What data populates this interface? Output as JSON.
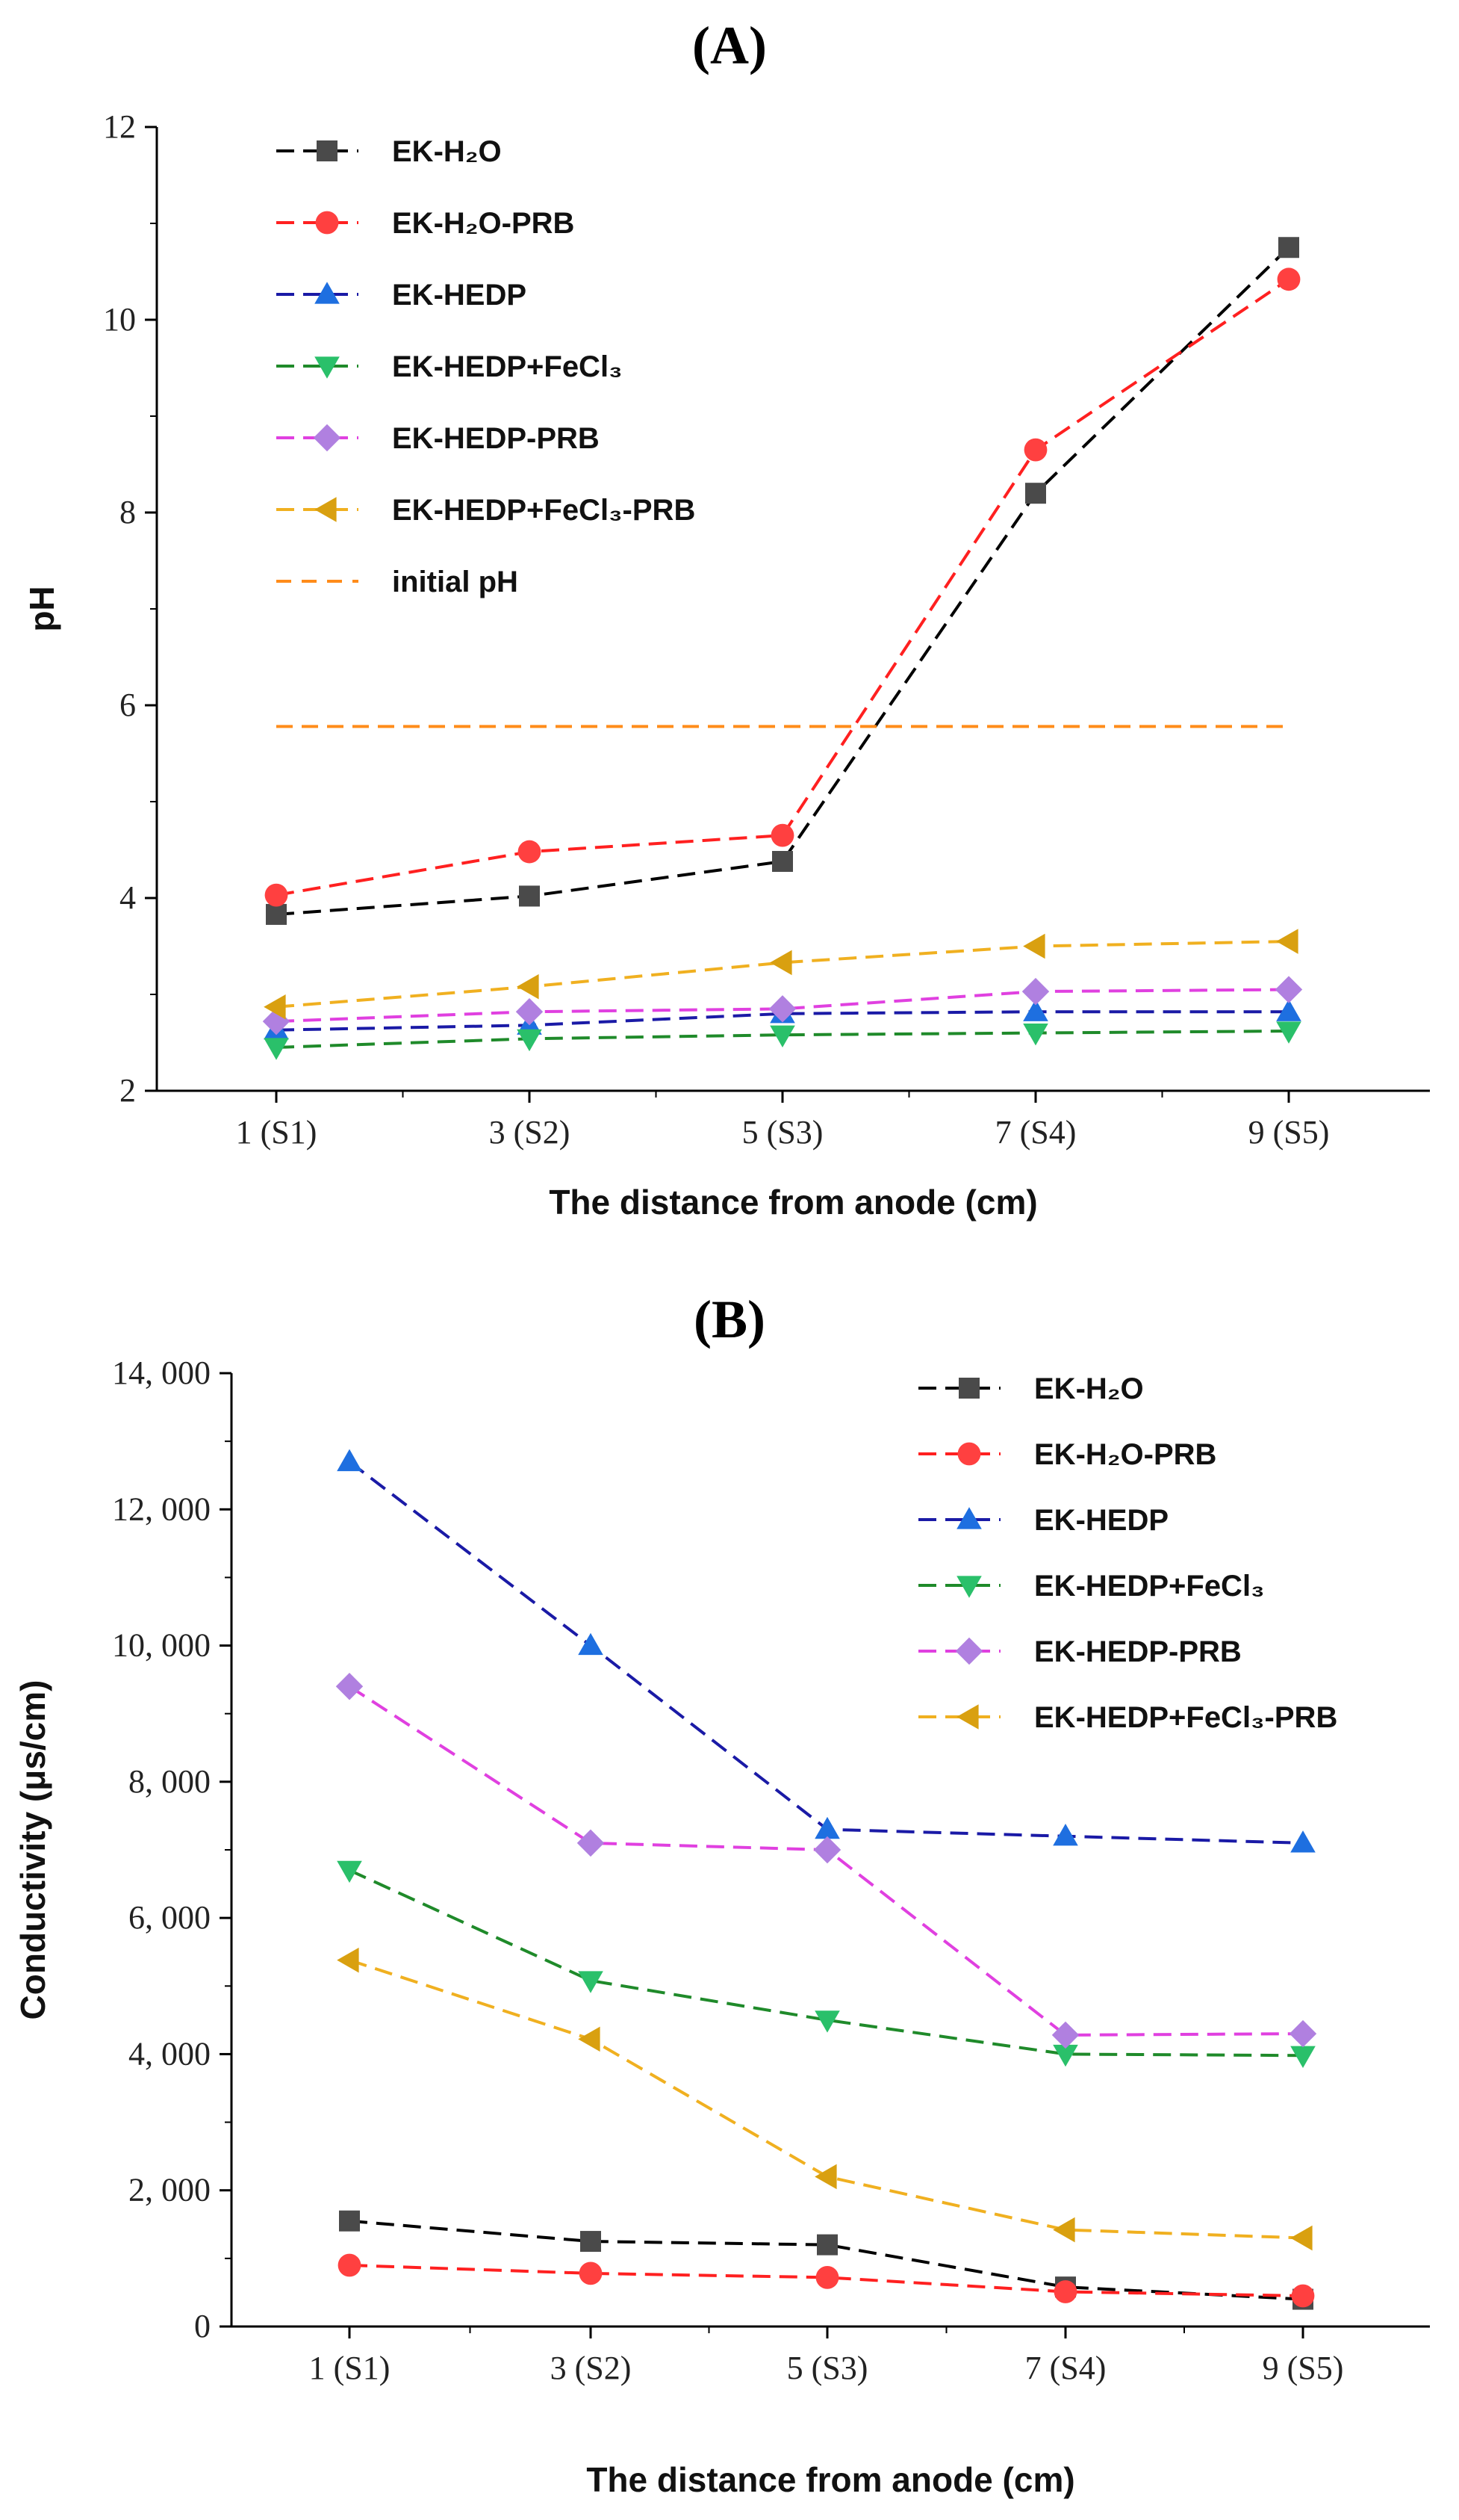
{
  "panels": {
    "a_label": "(A)",
    "b_label": "(B)"
  },
  "chart_data": [
    {
      "type": "line",
      "title": "(A)",
      "xlabel": "The distance from anode (cm)",
      "ylabel": "pH",
      "categories": [
        "1 (S1)",
        "3 (S2)",
        "5 (S3)",
        "7 (S4)",
        "9 (S5)"
      ],
      "ylim": [
        2,
        12
      ],
      "yticks": [
        "2",
        "4",
        "6",
        "8",
        "10",
        "12"
      ],
      "legend_position": "top-left",
      "series": [
        {
          "name": "EK-H₂O",
          "color": "#000000",
          "marker": "square",
          "marker_color": "#4a4a4a",
          "values": [
            3.83,
            4.02,
            4.38,
            8.2,
            10.75
          ]
        },
        {
          "name": "EK-H₂O-PRB",
          "color": "#ff2020",
          "marker": "circle",
          "marker_color": "#ff4040",
          "values": [
            4.03,
            4.48,
            4.65,
            8.65,
            10.42
          ]
        },
        {
          "name": "EK-HEDP",
          "color": "#1a1aa6",
          "marker": "triangle-up",
          "marker_color": "#1e6fe0",
          "values": [
            2.63,
            2.68,
            2.8,
            2.82,
            2.82
          ]
        },
        {
          "name": "EK-HEDP+FeCl₃",
          "color": "#1f8a2a",
          "marker": "triangle-down",
          "marker_color": "#2ac06a",
          "values": [
            2.45,
            2.54,
            2.58,
            2.6,
            2.62
          ]
        },
        {
          "name": "EK-HEDP-PRB",
          "color": "#e040e0",
          "marker": "diamond",
          "marker_color": "#b080e0",
          "values": [
            2.72,
            2.82,
            2.85,
            3.03,
            3.05
          ]
        },
        {
          "name": "EK-HEDP+FeCl₃-PRB",
          "color": "#f0b020",
          "marker": "triangle-left",
          "marker_color": "#d9a010",
          "values": [
            2.87,
            3.08,
            3.33,
            3.5,
            3.55
          ]
        },
        {
          "name": "initial pH",
          "color": "#ff8c1a",
          "marker": "dash",
          "marker_color": "#ff8c1a",
          "values": [
            5.78,
            5.78,
            5.78,
            5.78,
            5.78
          ]
        }
      ]
    },
    {
      "type": "line",
      "title": "(B)",
      "xlabel": "The distance from anode (cm)",
      "ylabel": "Conductivity (μs/cm)",
      "categories": [
        "1 (S1)",
        "3 (S2)",
        "5 (S3)",
        "7 (S4)",
        "9 (S5)"
      ],
      "ylim": [
        0,
        14000
      ],
      "yticks": [
        "0",
        "2, 000",
        "4, 000",
        "6, 000",
        "8, 000",
        "10, 000",
        "12, 000",
        "14, 000"
      ],
      "legend_position": "top-right",
      "series": [
        {
          "name": "EK-H₂O",
          "color": "#000000",
          "marker": "square",
          "marker_color": "#4a4a4a",
          "values": [
            1550,
            1250,
            1200,
            580,
            400
          ]
        },
        {
          "name": "EK-H₂O-PRB",
          "color": "#ff2020",
          "marker": "circle",
          "marker_color": "#ff4040",
          "values": [
            900,
            780,
            720,
            510,
            450
          ]
        },
        {
          "name": "EK-HEDP",
          "color": "#1a1aa6",
          "marker": "triangle-up",
          "marker_color": "#1e6fe0",
          "values": [
            12700,
            10000,
            7300,
            7200,
            7100
          ]
        },
        {
          "name": "EK-HEDP+FeCl₃",
          "color": "#1f8a2a",
          "marker": "triangle-down",
          "marker_color": "#2ac06a",
          "values": [
            6700,
            5080,
            4500,
            4000,
            3980
          ]
        },
        {
          "name": "EK-HEDP-PRB",
          "color": "#e040e0",
          "marker": "diamond",
          "marker_color": "#b080e0",
          "values": [
            9400,
            7100,
            7000,
            4280,
            4300
          ]
        },
        {
          "name": "EK-HEDP+FeCl₃-PRB",
          "color": "#f0b020",
          "marker": "triangle-left",
          "marker_color": "#d9a010",
          "values": [
            5380,
            4220,
            2200,
            1420,
            1300
          ]
        }
      ]
    }
  ]
}
